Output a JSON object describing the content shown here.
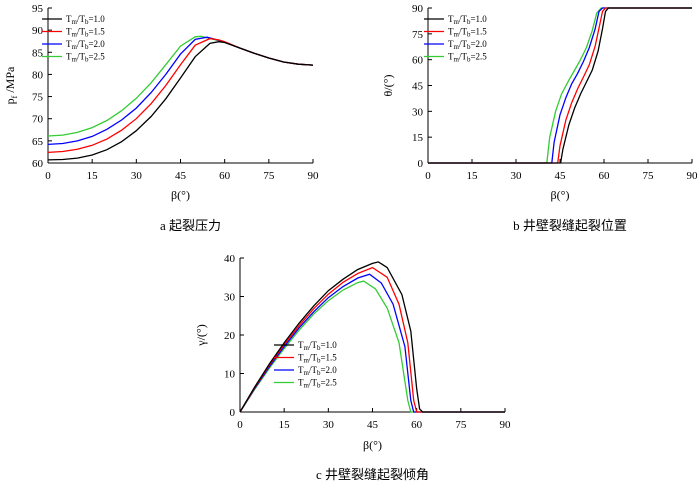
{
  "chart_data": [
    {
      "type": "line",
      "caption": "a  起裂压力",
      "xlabel": "β(°)",
      "ylabel": "pf /MPa",
      "xlim": [
        0,
        90
      ],
      "ylim": [
        60,
        95
      ],
      "xticks": [
        0,
        15,
        30,
        45,
        60,
        75,
        90
      ],
      "yticks": [
        60,
        65,
        70,
        75,
        80,
        85,
        90,
        95
      ],
      "legend_position": "top-left",
      "series": [
        {
          "name": "Tm/Tb=1.0",
          "color": "#000000",
          "x": [
            0,
            5,
            10,
            15,
            20,
            25,
            30,
            35,
            40,
            45,
            50,
            55,
            58,
            60,
            65,
            70,
            75,
            80,
            85,
            90
          ],
          "y": [
            60.7,
            60.8,
            61.1,
            61.8,
            63.0,
            64.8,
            67.3,
            70.5,
            74.5,
            79.2,
            84.0,
            87.0,
            87.4,
            87.2,
            86.0,
            84.8,
            83.7,
            82.8,
            82.3,
            82.1
          ]
        },
        {
          "name": "Tm/Tb=1.5",
          "color": "#ff0000",
          "x": [
            0,
            5,
            10,
            15,
            20,
            25,
            30,
            35,
            40,
            45,
            50,
            55,
            58,
            60,
            65,
            70,
            75,
            80,
            85,
            90
          ],
          "y": [
            62.4,
            62.6,
            63.1,
            64.0,
            65.4,
            67.4,
            70.0,
            73.4,
            77.5,
            82.2,
            86.6,
            88.1,
            87.8,
            87.4,
            86.0,
            84.8,
            83.7,
            82.8,
            82.3,
            82.1
          ]
        },
        {
          "name": "Tm/Tb=2.0",
          "color": "#0000ff",
          "x": [
            0,
            5,
            10,
            15,
            20,
            25,
            30,
            35,
            40,
            45,
            50,
            54,
            58,
            60,
            65,
            70,
            75,
            80,
            85,
            90
          ],
          "y": [
            64.2,
            64.4,
            65.0,
            66.0,
            67.6,
            69.7,
            72.4,
            75.9,
            80.0,
            84.6,
            87.9,
            88.4,
            87.7,
            87.3,
            86.0,
            84.8,
            83.7,
            82.8,
            82.3,
            82.1
          ]
        },
        {
          "name": "Tm/Tb=2.5",
          "color": "#33cc33",
          "x": [
            0,
            5,
            10,
            15,
            20,
            25,
            30,
            35,
            40,
            45,
            50,
            52,
            58,
            60,
            65,
            70,
            75,
            80,
            85,
            90
          ],
          "y": [
            66.1,
            66.3,
            66.9,
            68.0,
            69.6,
            71.8,
            74.6,
            78.1,
            82.2,
            86.4,
            88.5,
            88.6,
            87.6,
            87.3,
            86.0,
            84.8,
            83.7,
            82.8,
            82.3,
            82.1
          ]
        }
      ]
    },
    {
      "type": "line",
      "caption": "b  井壁裂缝起裂位置",
      "xlabel": "β(°)",
      "ylabel": "θ/(°)",
      "xlim": [
        0,
        90
      ],
      "ylim": [
        0,
        90
      ],
      "xticks": [
        0,
        15,
        30,
        45,
        60,
        75,
        90
      ],
      "yticks": [
        0,
        15,
        30,
        45,
        60,
        75,
        90
      ],
      "legend_position": "top-right",
      "series": [
        {
          "name": "Tm/Tb=1.0",
          "color": "#000000",
          "x": [
            0,
            45.2,
            46,
            48,
            50,
            52,
            54,
            56,
            58,
            59.5,
            60.5,
            61.5,
            90
          ],
          "y": [
            0,
            0,
            8,
            22,
            32,
            40,
            47,
            54,
            65,
            78,
            88,
            90,
            90
          ]
        },
        {
          "name": "Tm/Tb=1.5",
          "color": "#ff0000",
          "x": [
            0,
            44.2,
            45,
            47,
            49,
            51,
            53,
            55,
            57,
            58.5,
            59.5,
            60.5,
            90
          ],
          "y": [
            0,
            0,
            10,
            25,
            35,
            43,
            50,
            57,
            68,
            80,
            88,
            90,
            90
          ]
        },
        {
          "name": "Tm/Tb=2.0",
          "color": "#0000ff",
          "x": [
            0,
            42.2,
            43,
            45,
            47,
            49,
            51,
            53,
            55,
            57,
            58.3,
            59.5,
            90
          ],
          "y": [
            0,
            0,
            12,
            28,
            38,
            46,
            52,
            59,
            67,
            78,
            88,
            90,
            90
          ]
        },
        {
          "name": "Tm/Tb=2.5",
          "color": "#33cc33",
          "x": [
            0,
            40.5,
            41.5,
            43.5,
            45.5,
            48,
            50,
            52,
            54,
            56,
            57.5,
            59,
            90
          ],
          "y": [
            0,
            0,
            15,
            30,
            40,
            48,
            54,
            60,
            67,
            77,
            87,
            90,
            90
          ]
        }
      ]
    },
    {
      "type": "line",
      "caption": "c  井壁裂缝起裂倾角",
      "xlabel": "β(°)",
      "ylabel": "γ/(°)",
      "xlim": [
        0,
        90
      ],
      "ylim": [
        0,
        40
      ],
      "xticks": [
        0,
        15,
        30,
        45,
        60,
        75,
        90
      ],
      "yticks": [
        0,
        10,
        20,
        30,
        40
      ],
      "legend_position": "center",
      "series": [
        {
          "name": "Tm/Tb=1.0",
          "color": "#000000",
          "x": [
            0,
            5,
            10,
            15,
            20,
            25,
            30,
            35,
            40,
            45,
            47,
            50,
            55,
            58,
            60,
            61,
            62,
            90
          ],
          "y": [
            0,
            6.5,
            12.5,
            18,
            23,
            27.5,
            31.5,
            34.5,
            37,
            38.6,
            39,
            37.5,
            30.5,
            21,
            6,
            0.8,
            0,
            0
          ]
        },
        {
          "name": "Tm/Tb=1.5",
          "color": "#ff0000",
          "x": [
            0,
            5,
            10,
            15,
            20,
            25,
            30,
            35,
            40,
            45,
            50,
            54,
            57,
            59,
            60,
            90
          ],
          "y": [
            0,
            6.3,
            12.2,
            17.5,
            22.4,
            26.8,
            30.6,
            33.7,
            36,
            37.5,
            35,
            28,
            18,
            3,
            0,
            0
          ]
        },
        {
          "name": "Tm/Tb=2.0",
          "color": "#0000ff",
          "x": [
            0,
            5,
            10,
            15,
            20,
            25,
            30,
            35,
            40,
            44,
            48,
            52,
            56,
            58,
            59,
            90
          ],
          "y": [
            0,
            6.1,
            11.8,
            17,
            21.8,
            26,
            29.7,
            32.6,
            34.8,
            35.8,
            33.5,
            28,
            17,
            3,
            0,
            0
          ]
        },
        {
          "name": "Tm/Tb=2.5",
          "color": "#33cc33",
          "x": [
            0,
            5,
            10,
            15,
            20,
            25,
            30,
            35,
            40,
            42,
            46,
            50,
            54,
            57,
            58,
            90
          ],
          "y": [
            0,
            5.9,
            11.4,
            16.5,
            21.2,
            25.4,
            28.9,
            31.7,
            33.6,
            34,
            32,
            27,
            18,
            3,
            0,
            0
          ]
        }
      ]
    }
  ]
}
